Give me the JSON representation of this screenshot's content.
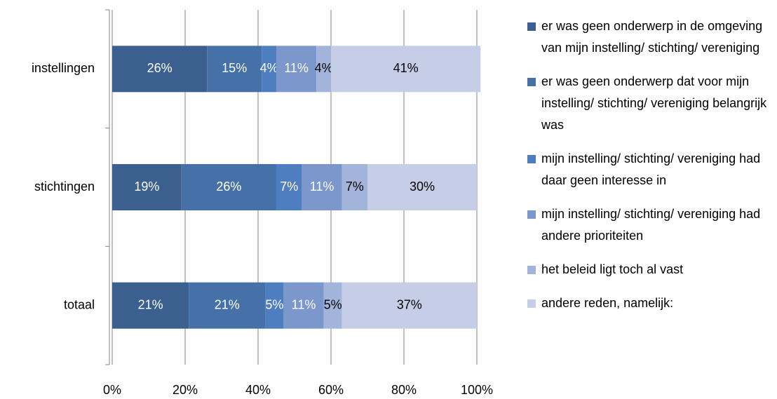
{
  "chart_data": {
    "type": "stacked-bar-horizontal",
    "categories": [
      "instellingen",
      "stichtingen",
      "totaal"
    ],
    "series": [
      {
        "name": "er was geen onderwerp in de omgeving van mijn instelling/ stichting/ vereniging",
        "color": "#3b5f8f",
        "label_color": "#ffffff",
        "values": [
          26,
          19,
          21
        ],
        "value_labels": [
          "26%",
          "19%",
          "21%"
        ]
      },
      {
        "name": "er was geen onderwerp dat voor mijn instelling/ stichting/ vereniging belangrijk was",
        "color": "#4571a8",
        "label_color": "#ffffff",
        "values": [
          15,
          26,
          21
        ],
        "value_labels": [
          "15%",
          "26%",
          "21%"
        ]
      },
      {
        "name": "mijn instelling/ stichting/ vereniging had daar geen interesse in",
        "color": "#4f7ec0",
        "label_color": "#ffffff",
        "values": [
          4,
          7,
          5
        ],
        "value_labels": [
          "4%",
          "7%",
          "5%"
        ]
      },
      {
        "name": "mijn instelling/ stichting/ vereniging had andere prioriteiten",
        "color": "#7b97cb",
        "label_color": "#ffffff",
        "values": [
          11,
          11,
          11
        ],
        "value_labels": [
          "11%",
          "11%",
          "11%"
        ]
      },
      {
        "name": "het beleid ligt toch al vast",
        "color": "#a2b4d9",
        "label_color": "#000000",
        "values": [
          4,
          7,
          5
        ],
        "value_labels": [
          "4%",
          "7%",
          "5%"
        ]
      },
      {
        "name": "andere reden, namelijk:",
        "color": "#c5cee6",
        "label_color": "#000000",
        "values": [
          41,
          30,
          37
        ],
        "value_labels": [
          "41%",
          "30%",
          "37%"
        ]
      }
    ],
    "xlim": [
      0,
      100
    ],
    "xticks": [
      {
        "value": 0,
        "label": "0%"
      },
      {
        "value": 20,
        "label": "20%"
      },
      {
        "value": 40,
        "label": "40%"
      },
      {
        "value": 60,
        "label": "60%"
      },
      {
        "value": 80,
        "label": "80%"
      },
      {
        "value": 100,
        "label": "100%"
      }
    ],
    "grid": true,
    "legend": "right"
  }
}
